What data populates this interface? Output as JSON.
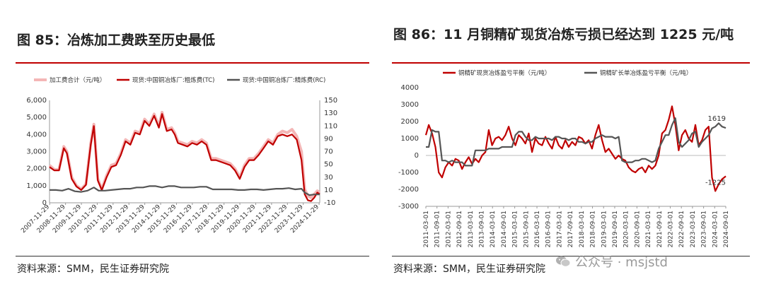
{
  "figures": [
    {
      "title": "图 85：冶炼加工费跌至历史最低",
      "source": "资料来源：SMM，民生证券研究院"
    },
    {
      "title": "图 86：11 月铜精矿现货冶炼亏损已经达到 1225 元/吨",
      "source": "资料来源：SMM，民生证券研究院"
    }
  ],
  "watermark": {
    "text": "公众号 · msjstd",
    "icon": "wechat-icon"
  },
  "colors": {
    "red": "#c00000",
    "pink": "#f4b6b6",
    "gray": "#555555",
    "accent": "#c00000"
  },
  "chart_data": [
    {
      "type": "line",
      "title": "",
      "legend": [
        "加工费合计（元/吨）",
        "现货:中国铜冶炼厂:粗炼费(TC)",
        "现货:中国铜冶炼厂:精炼费(RC)"
      ],
      "legend_position": "top",
      "y_left_ticks": [
        "6,000",
        "5,000",
        "4,000",
        "3,000",
        "2,000",
        "1,000",
        "0"
      ],
      "y_left_range": [
        0,
        6000
      ],
      "y_right_ticks": [
        "150",
        "130",
        "110",
        "90",
        "70",
        "50",
        "30",
        "10",
        "-10"
      ],
      "y_right_range": [
        -10,
        150
      ],
      "x_labels": [
        "2007-11-29",
        "2008-11-29",
        "2009-11-29",
        "2010-11-29",
        "2011-11-29",
        "2012-11-29",
        "2013-11-29",
        "2014-11-29",
        "2015-11-29",
        "2016-11-29",
        "2017-11-29",
        "2018-11-29",
        "2019-11-29",
        "2020-11-29",
        "2021-11-29",
        "2022-11-29",
        "2023-11-29",
        "2024-11-29"
      ],
      "x_range": [
        2007.9,
        2024.95
      ],
      "series": [
        {
          "name": "加工费合计（元/吨）",
          "axis": "left",
          "color": "#f4b6b6",
          "x": [
            2007.9,
            2008.2,
            2008.5,
            2008.8,
            2009.0,
            2009.3,
            2009.6,
            2009.9,
            2010.2,
            2010.5,
            2010.7,
            2010.95,
            2011.2,
            2011.5,
            2011.8,
            2012.1,
            2012.4,
            2012.7,
            2013.0,
            2013.3,
            2013.6,
            2013.9,
            2014.2,
            2014.5,
            2014.8,
            2015.0,
            2015.3,
            2015.6,
            2015.8,
            2016.0,
            2016.3,
            2016.6,
            2016.9,
            2017.2,
            2017.5,
            2017.8,
            2018.1,
            2018.4,
            2018.7,
            2019.0,
            2019.3,
            2019.6,
            2019.9,
            2020.2,
            2020.5,
            2020.8,
            2021.1,
            2021.4,
            2021.7,
            2022.0,
            2022.3,
            2022.6,
            2022.9,
            2023.2,
            2023.5,
            2023.8,
            2024.0,
            2024.2,
            2024.4,
            2024.6,
            2024.8,
            2024.95
          ],
          "values": [
            2200,
            1950,
            1950,
            3300,
            3000,
            1500,
            1000,
            800,
            1100,
            3500,
            4600,
            1400,
            800,
            1600,
            2200,
            2300,
            2900,
            3700,
            3500,
            4200,
            4100,
            4900,
            4600,
            5200,
            4500,
            5300,
            4300,
            4400,
            4100,
            3600,
            3500,
            3400,
            3600,
            3500,
            3700,
            3500,
            2600,
            2600,
            2500,
            2400,
            2300,
            2000,
            1500,
            2200,
            2600,
            2600,
            2900,
            3300,
            3700,
            3500,
            4000,
            4200,
            4100,
            4300,
            3900,
            3000,
            800,
            400,
            300,
            500,
            700,
            600
          ]
        },
        {
          "name": "现货:中国铜冶炼厂:粗炼费(TC)",
          "axis": "left",
          "color": "#c00000",
          "x": [
            2007.9,
            2008.2,
            2008.5,
            2008.8,
            2009.0,
            2009.3,
            2009.6,
            2009.9,
            2010.2,
            2010.5,
            2010.7,
            2010.95,
            2011.2,
            2011.5,
            2011.8,
            2012.1,
            2012.4,
            2012.7,
            2013.0,
            2013.3,
            2013.6,
            2013.9,
            2014.2,
            2014.5,
            2014.8,
            2015.0,
            2015.3,
            2015.6,
            2015.8,
            2016.0,
            2016.3,
            2016.6,
            2016.9,
            2017.2,
            2017.5,
            2017.8,
            2018.1,
            2018.4,
            2018.7,
            2019.0,
            2019.3,
            2019.6,
            2019.9,
            2020.2,
            2020.5,
            2020.8,
            2021.1,
            2021.4,
            2021.7,
            2022.0,
            2022.3,
            2022.6,
            2022.9,
            2023.2,
            2023.5,
            2023.8,
            2024.0,
            2024.2,
            2024.4,
            2024.6,
            2024.8,
            2024.95
          ],
          "values": [
            2100,
            1900,
            1900,
            3200,
            2900,
            1400,
            950,
            750,
            1050,
            3400,
            4500,
            1300,
            750,
            1500,
            2100,
            2200,
            2800,
            3600,
            3400,
            4100,
            4000,
            4800,
            4500,
            5100,
            4400,
            5200,
            4200,
            4300,
            4000,
            3500,
            3400,
            3300,
            3500,
            3400,
            3600,
            3400,
            2500,
            2500,
            2400,
            2300,
            2200,
            1900,
            1400,
            2100,
            2500,
            2500,
            2800,
            3200,
            3600,
            3400,
            3900,
            4000,
            3900,
            4000,
            3700,
            2500,
            500,
            150,
            100,
            300,
            600,
            500
          ]
        },
        {
          "name": "现货:中国铜冶炼厂:精炼费(RC)",
          "axis": "right",
          "color": "#555555",
          "x": [
            2007.9,
            2008.3,
            2008.7,
            2009.1,
            2009.5,
            2009.9,
            2010.3,
            2010.7,
            2011.0,
            2011.4,
            2011.8,
            2012.2,
            2012.6,
            2013.0,
            2013.4,
            2013.8,
            2014.2,
            2014.6,
            2015.0,
            2015.4,
            2015.8,
            2016.2,
            2016.6,
            2017.0,
            2017.4,
            2017.8,
            2018.2,
            2018.6,
            2019.0,
            2019.4,
            2019.8,
            2020.2,
            2020.6,
            2021.0,
            2021.4,
            2021.8,
            2022.2,
            2022.6,
            2023.0,
            2023.4,
            2023.8,
            2024.0,
            2024.3,
            2024.6,
            2024.95
          ],
          "values": [
            10,
            10,
            9,
            12,
            8,
            7,
            9,
            14,
            9,
            9,
            10,
            11,
            12,
            12,
            14,
            14,
            16,
            16,
            14,
            16,
            16,
            14,
            14,
            14,
            15,
            15,
            11,
            11,
            11,
            11,
            10,
            10,
            11,
            11,
            10,
            11,
            12,
            12,
            13,
            11,
            12,
            6,
            2,
            3,
            3
          ]
        }
      ]
    },
    {
      "type": "line",
      "title": "",
      "legend": [
        "铜精矿现货冶炼盈亏平衡（元/吨）",
        "铜精矿长单冶炼盈亏平衡（元/吨）"
      ],
      "legend_position": "top",
      "y_ticks": [
        "4000",
        "3000",
        "2000",
        "1000",
        "0",
        "-1000",
        "-2000",
        "-3000"
      ],
      "y_range": [
        -3000,
        4000
      ],
      "x_labels": [
        "2011-03-01",
        "2011-09-01",
        "2012-03-01",
        "2012-09-01",
        "2013-03-01",
        "2013-09-01",
        "2014-03-01",
        "2014-09-01",
        "2015-03-01",
        "2015-09-01",
        "2016-03-01",
        "2016-09-01",
        "2017-03-01",
        "2017-09-01",
        "2018-03-01",
        "2018-09-01",
        "2019-03-01",
        "2019-09-01",
        "2020-03-01",
        "2020-09-01",
        "2021-03-01",
        "2021-09-01",
        "2022-03-01",
        "2022-09-01",
        "2023-03-01",
        "2023-09-01",
        "2024-03-01",
        "2024-09-01"
      ],
      "x_range": [
        2011.17,
        2024.67
      ],
      "annotations": [
        {
          "text": "1619",
          "x": 2024.67,
          "y": 1619
        },
        {
          "text": "-1225",
          "x": 2024.67,
          "y": -1225
        }
      ],
      "series": [
        {
          "name": "铜精矿现货冶炼盈亏平衡（元/吨）",
          "color": "#c00000",
          "x": [
            2011.17,
            2011.3,
            2011.45,
            2011.6,
            2011.75,
            2011.9,
            2012.05,
            2012.2,
            2012.35,
            2012.5,
            2012.65,
            2012.8,
            2012.95,
            2013.1,
            2013.25,
            2013.4,
            2013.55,
            2013.7,
            2013.85,
            2014.0,
            2014.15,
            2014.3,
            2014.45,
            2014.6,
            2014.75,
            2014.9,
            2015.05,
            2015.2,
            2015.35,
            2015.5,
            2015.65,
            2015.8,
            2015.95,
            2016.1,
            2016.25,
            2016.4,
            2016.55,
            2016.7,
            2016.85,
            2017.0,
            2017.15,
            2017.3,
            2017.45,
            2017.6,
            2017.75,
            2017.9,
            2018.05,
            2018.2,
            2018.35,
            2018.5,
            2018.65,
            2018.8,
            2018.95,
            2019.1,
            2019.25,
            2019.4,
            2019.55,
            2019.7,
            2019.85,
            2020.0,
            2020.15,
            2020.3,
            2020.45,
            2020.6,
            2020.75,
            2020.9,
            2021.05,
            2021.2,
            2021.35,
            2021.5,
            2021.65,
            2021.8,
            2021.95,
            2022.1,
            2022.25,
            2022.4,
            2022.55,
            2022.7,
            2022.85,
            2023.0,
            2023.15,
            2023.3,
            2023.45,
            2023.6,
            2023.75,
            2023.9,
            2024.05,
            2024.2,
            2024.35,
            2024.5,
            2024.67
          ],
          "values": [
            1200,
            1800,
            1300,
            500,
            -1000,
            -1300,
            -700,
            -400,
            -600,
            -200,
            -300,
            -800,
            -400,
            -100,
            -500,
            -200,
            -400,
            0,
            200,
            1500,
            600,
            1000,
            1100,
            900,
            1200,
            1700,
            1000,
            600,
            1200,
            1000,
            700,
            1300,
            200,
            1000,
            700,
            600,
            1100,
            700,
            400,
            1100,
            600,
            400,
            900,
            500,
            800,
            600,
            1100,
            1000,
            700,
            900,
            400,
            1200,
            1800,
            900,
            200,
            400,
            100,
            -200,
            0,
            -200,
            -300,
            -700,
            -900,
            -1000,
            -800,
            -700,
            -1000,
            -600,
            -800,
            -600,
            0,
            1300,
            1500,
            2100,
            2900,
            1800,
            300,
            1200,
            1500,
            1000,
            800,
            1800,
            600,
            900,
            1500,
            1700,
            -1300,
            -2100,
            -1700,
            -1400,
            -1225
          ]
        },
        {
          "name": "铜精矿长单冶炼盈亏平衡（元/吨）",
          "color": "#555555",
          "x": [
            2011.17,
            2011.3,
            2011.45,
            2011.6,
            2011.75,
            2011.9,
            2012.05,
            2012.2,
            2012.35,
            2012.5,
            2012.65,
            2012.8,
            2012.95,
            2013.1,
            2013.25,
            2013.4,
            2013.55,
            2013.7,
            2013.85,
            2014.0,
            2014.15,
            2014.3,
            2014.45,
            2014.6,
            2014.75,
            2014.9,
            2015.05,
            2015.2,
            2015.35,
            2015.5,
            2015.65,
            2015.8,
            2015.95,
            2016.1,
            2016.25,
            2016.4,
            2016.55,
            2016.7,
            2016.85,
            2017.0,
            2017.15,
            2017.3,
            2017.45,
            2017.6,
            2017.75,
            2017.9,
            2018.05,
            2018.2,
            2018.35,
            2018.5,
            2018.65,
            2018.8,
            2018.95,
            2019.1,
            2019.25,
            2019.4,
            2019.55,
            2019.7,
            2019.85,
            2020.0,
            2020.15,
            2020.3,
            2020.45,
            2020.6,
            2020.75,
            2020.9,
            2021.05,
            2021.2,
            2021.35,
            2021.5,
            2021.65,
            2021.8,
            2021.95,
            2022.1,
            2022.25,
            2022.4,
            2022.55,
            2022.7,
            2022.85,
            2023.0,
            2023.15,
            2023.3,
            2023.45,
            2023.6,
            2023.75,
            2023.9,
            2024.05,
            2024.2,
            2024.35,
            2024.5,
            2024.67
          ],
          "values": [
            500,
            500,
            1500,
            1400,
            1400,
            -300,
            -300,
            -400,
            -300,
            -400,
            -400,
            -400,
            -600,
            -600,
            -600,
            300,
            300,
            300,
            300,
            400,
            400,
            400,
            400,
            500,
            500,
            500,
            500,
            1200,
            1400,
            1400,
            1100,
            900,
            900,
            1100,
            1000,
            1000,
            1000,
            1000,
            900,
            1100,
            1100,
            1000,
            1000,
            900,
            1000,
            1000,
            800,
            800,
            700,
            800,
            800,
            1000,
            1100,
            1200,
            1100,
            1100,
            1100,
            1000,
            1100,
            -300,
            -400,
            -400,
            -400,
            -300,
            -300,
            -200,
            -200,
            -300,
            -400,
            -300,
            400,
            800,
            1200,
            1200,
            1800,
            2200,
            800,
            500,
            700,
            900,
            1300,
            1400,
            500,
            800,
            1000,
            1200,
            1600,
            1700,
            1900,
            1700,
            1619
          ]
        }
      ]
    }
  ]
}
